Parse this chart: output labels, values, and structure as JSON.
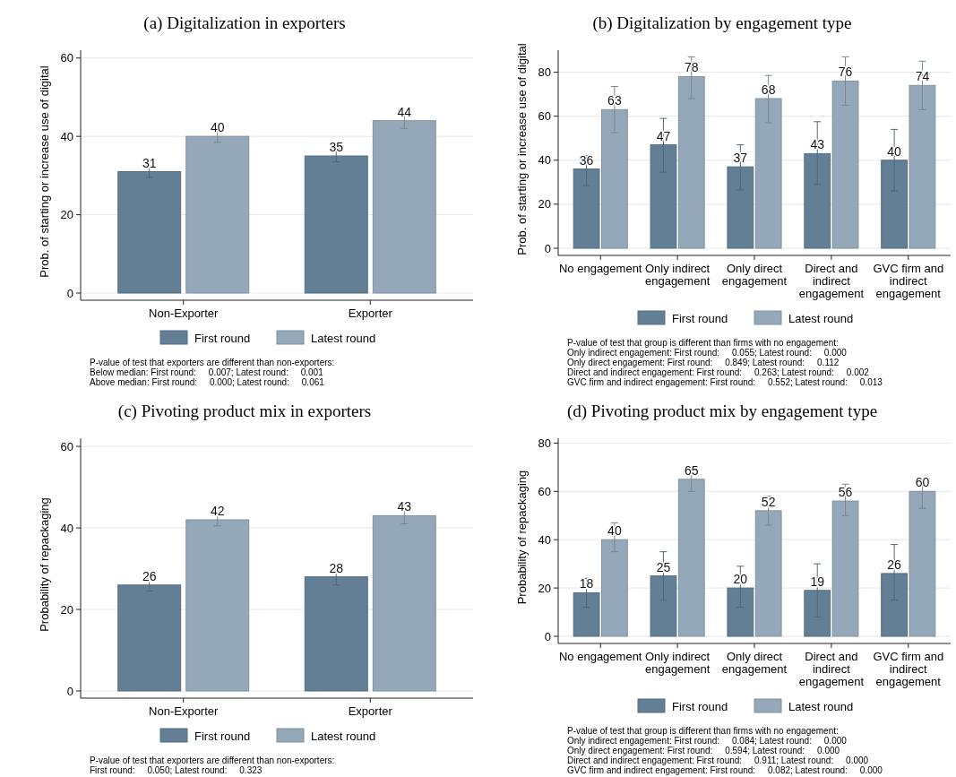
{
  "chart_data": [
    {
      "type": "bar",
      "title": "(a) Digitalization in exporters",
      "ylabel": "Prob. of starting or increase use of digital",
      "categories": [
        "Non-Exporter",
        "Exporter"
      ],
      "ylim": [
        0,
        62
      ],
      "yticks": [
        0,
        20,
        40,
        60
      ],
      "grid": "y",
      "legend": "bottom",
      "data_labels": true,
      "series": [
        {
          "name": "First round",
          "color": "#627f96",
          "values": [
            31,
            35
          ],
          "errors": [
            [
              29.5,
              32.5
            ],
            [
              33.5,
              37
            ]
          ]
        },
        {
          "name": "Latest round",
          "color": "#95a8b9",
          "values": [
            40,
            44
          ],
          "errors": [
            [
              38.5,
              41.5
            ],
            [
              42,
              46
            ]
          ]
        }
      ],
      "annotations": [
        "P-value of test that exporters are different than non-exporters:",
        "Below median: First round:     0.007; Latest round:     0.001",
        "Above median: First round:     0.000; Latest round:     0.061"
      ]
    },
    {
      "type": "bar",
      "title": "(b) Digitalization by engagement type",
      "ylabel": "Prob. of starting or increase use of digital",
      "categories": [
        "No engagement",
        "Only indirect engagement",
        "Only direct engagement",
        "Direct and indirect engagement",
        "GVC firm and indirect engagement"
      ],
      "ylim": [
        0,
        90
      ],
      "yticks": [
        0,
        20,
        40,
        60,
        80
      ],
      "grid": "y",
      "legend": "bottom",
      "data_labels": true,
      "series": [
        {
          "name": "First round",
          "color": "#627f96",
          "values": [
            36,
            47,
            37,
            43,
            40
          ],
          "errors": [
            [
              28.5,
              42
            ],
            [
              34.5,
              59
            ],
            [
              26.5,
              47
            ],
            [
              29,
              57.5
            ],
            [
              26,
              54
            ]
          ]
        },
        {
          "name": "Latest round",
          "color": "#95a8b9",
          "values": [
            63,
            78,
            68,
            76,
            74
          ],
          "errors": [
            [
              52.5,
              73.5
            ],
            [
              68,
              87
            ],
            [
              57,
              78.5
            ],
            [
              65,
              87
            ],
            [
              63,
              85
            ]
          ]
        }
      ],
      "annotations": [
        "P-value of test that group is different than firms with no engagement:",
        "Only indirect engagement: First round:     0.055; Latest round:     0.000",
        "Only direct engagement: First round:     0.849; Latest round:     0.112",
        "Direct and indirect engagement: First round:     0.263; Latest round:     0.002",
        "GVC firm and indirect engagement: First round:     0.552; Latest round:     0.013"
      ]
    },
    {
      "type": "bar",
      "title": "(c) Pivoting product mix in exporters",
      "ylabel": "Probability of repackaging",
      "categories": [
        "Non-Exporter",
        "Exporter"
      ],
      "ylim": [
        0,
        62
      ],
      "yticks": [
        0,
        20,
        40,
        60
      ],
      "grid": "y",
      "legend": "bottom",
      "data_labels": true,
      "series": [
        {
          "name": "First round",
          "color": "#627f96",
          "values": [
            26,
            28
          ],
          "errors": [
            [
              24.5,
              27.5
            ],
            [
              26,
              30
            ]
          ]
        },
        {
          "name": "Latest round",
          "color": "#95a8b9",
          "values": [
            42,
            43
          ],
          "errors": [
            [
              40.5,
              43.5
            ],
            [
              41,
              45
            ]
          ]
        }
      ],
      "annotations": [
        "P-value of test that exporters are different than non-exporters:",
        "First round:     0.050; Latest round:     0.323"
      ]
    },
    {
      "type": "bar",
      "title": "(d) Pivoting product mix by engagement type",
      "ylabel": "Probability of repackaging",
      "categories": [
        "No engagement",
        "Only indirect engagement",
        "Only direct engagement",
        "Direct and indirect engagement",
        "GVC firm and indirect engagement"
      ],
      "ylim": [
        0,
        82
      ],
      "yticks": [
        0,
        20,
        40,
        60,
        80
      ],
      "grid": "y",
      "legend": "bottom",
      "data_labels": true,
      "series": [
        {
          "name": "First round",
          "color": "#627f96",
          "values": [
            18,
            25,
            20,
            19,
            26
          ],
          "errors": [
            [
              12,
              24
            ],
            [
              15,
              35
            ],
            [
              12,
              29
            ],
            [
              8,
              30
            ],
            [
              15,
              38
            ]
          ]
        },
        {
          "name": "Latest round",
          "color": "#95a8b9",
          "values": [
            40,
            65,
            52,
            56,
            60
          ],
          "errors": [
            [
              35,
              47
            ],
            [
              60,
              70
            ],
            [
              46,
              58
            ],
            [
              50,
              63
            ],
            [
              53,
              65
            ]
          ]
        }
      ],
      "annotations": [
        "P-value of test that group is different than firms with no engagement:",
        "Only indirect engagement: First round:     0.084; Latest round:     0.000",
        "Only direct engagement: First round:     0.594; Latest round:     0.000",
        "Direct and indirect engagement: First round:     0.911; Latest round:     0.000",
        "GVC firm and indirect engagement: First round:     0.082; Latest round:     0.000"
      ]
    }
  ]
}
